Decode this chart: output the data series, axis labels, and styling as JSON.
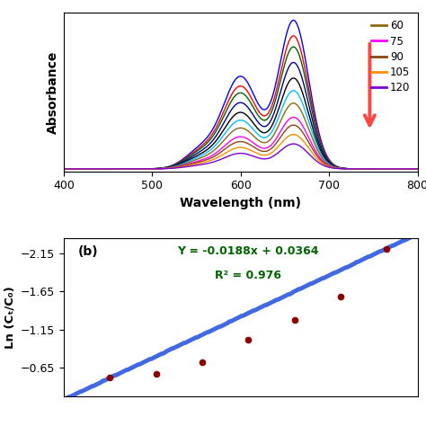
{
  "panel_a": {
    "xlabel": "Wavelength (nm)",
    "ylabel": "Absorbance",
    "xlim": [
      400,
      800
    ],
    "xticks": [
      400,
      500,
      600,
      700,
      800
    ],
    "legend_labels": [
      "60",
      "75",
      "90",
      "105",
      "120"
    ],
    "legend_colors": [
      "#8B6914",
      "#FF00FF",
      "#8B4513",
      "#FF8C00",
      "#7B00D4"
    ],
    "curve_colors": [
      "#0000FF",
      "#FF0000",
      "#006400",
      "#00008B",
      "#000000",
      "#00BFFF",
      "#8B6914",
      "#FF00FF",
      "#8B4513",
      "#FF8C00",
      "#7B00D4"
    ],
    "curve_peak_heights": [
      0.95,
      0.85,
      0.78,
      0.68,
      0.58,
      0.5,
      0.42,
      0.33,
      0.28,
      0.22,
      0.16
    ],
    "arrow_color": "#FF4444"
  },
  "panel_b": {
    "ylabel": "Ln (Cₜ/C₀)",
    "ylim": [
      -2.35,
      -0.28
    ],
    "yticks": [
      -2.15,
      -1.65,
      -1.15,
      -0.65
    ],
    "equation": "Y = -0.0188x + 0.0364",
    "r2": "R² = 0.976",
    "label": "(b)",
    "scatter_x": [
      30,
      45,
      60,
      75,
      90,
      105,
      120
    ],
    "scatter_y": [
      -0.52,
      -0.57,
      -0.72,
      -1.02,
      -1.28,
      -1.58,
      -2.2
    ],
    "fit_slope": -0.0188,
    "fit_intercept": 0.0364,
    "dot_color": "#8B0000",
    "line_color": "#4169E1",
    "eq_color": "#006400"
  }
}
